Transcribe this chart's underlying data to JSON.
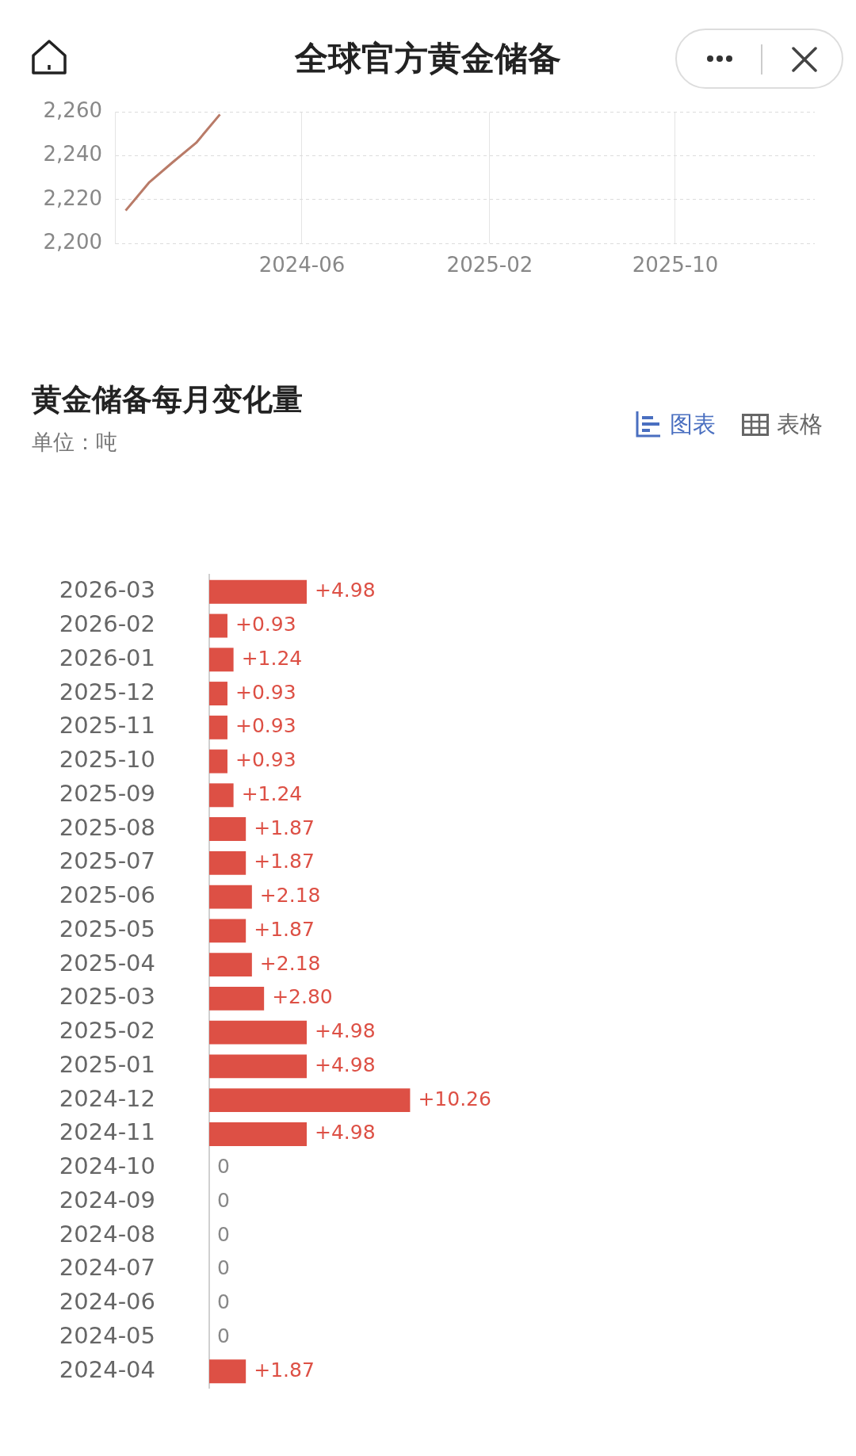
{
  "chart_data": [
    {
      "type": "line",
      "title": "全球官方黄金储备",
      "x": [
        "2023-10-15",
        "2023-11-15",
        "2023-12-15",
        "2024-01-15",
        "2024-02-15"
      ],
      "series": [
        {
          "color": "#b97b68",
          "values": [
            2215,
            2228,
            2237,
            2246,
            2259
          ]
        }
      ],
      "xlim": [
        "2023-10",
        "2026-04"
      ],
      "xticks": [
        "2024-06",
        "2025-02",
        "2025-10"
      ],
      "ylim": [
        2200,
        2260
      ],
      "yticks": [
        {
          "value": 2200,
          "label": "2,200"
        },
        {
          "value": 2220,
          "label": "2,220"
        },
        {
          "value": 2240,
          "label": "2,240"
        },
        {
          "value": 2260,
          "label": "2,260"
        }
      ],
      "grid": true,
      "legend": false,
      "marker": "none",
      "line_style": "solid"
    },
    {
      "type": "bar",
      "orientation": "horizontal",
      "title": "黄金储备每月变化量",
      "subtitle": "单位：吨",
      "annotations": [
        "图表",
        "表格"
      ],
      "categories": [
        "2026-03",
        "2026-02",
        "2026-01",
        "2025-12",
        "2025-11",
        "2025-10",
        "2025-09",
        "2025-08",
        "2025-07",
        "2025-06",
        "2025-05",
        "2025-04",
        "2025-03",
        "2025-02",
        "2025-01",
        "2024-12",
        "2024-11",
        "2024-10",
        "2024-09",
        "2024-08",
        "2024-07",
        "2024-06",
        "2024-05",
        "2024-04"
      ],
      "values": [
        4.98,
        0.93,
        1.24,
        0.93,
        0.93,
        0.93,
        1.24,
        1.87,
        1.87,
        2.18,
        1.87,
        2.18,
        2.8,
        4.98,
        4.98,
        10.26,
        4.98,
        0,
        0,
        0,
        0,
        0,
        0,
        1.87
      ],
      "colors": [
        "#dd5045",
        "#dd5045",
        "#dd5045",
        "#dd5045",
        "#dd5045",
        "#dd5045",
        "#dd5045",
        "#dd5045",
        "#dd5045",
        "#dd5045",
        "#dd5045",
        "#dd5045",
        "#dd5045",
        "#dd5045",
        "#dd5045",
        "#dd5045",
        "#dd5045",
        "#888888",
        "#888888",
        "#888888",
        "#888888",
        "#888888",
        "#888888",
        "#dd5045"
      ],
      "value_labels": [
        "+4.98",
        "+0.93",
        "+1.24",
        "+0.93",
        "+0.93",
        "+0.93",
        "+1.24",
        "+1.87",
        "+1.87",
        "+2.18",
        "+1.87",
        "+2.18",
        "+2.80",
        "+4.98",
        "+4.98",
        "+10.26",
        "+4.98",
        "0",
        "0",
        "0",
        "0",
        "0",
        "0",
        "+1.87"
      ],
      "tick_labels": "y",
      "grid": false,
      "legend": false
    }
  ]
}
